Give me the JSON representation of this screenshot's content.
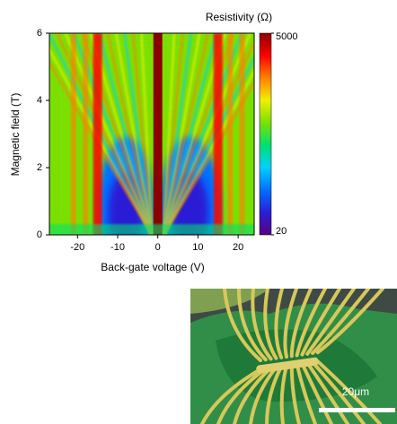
{
  "chart_data": {
    "type": "heatmap",
    "x_label": "Back-gate voltage (V)",
    "y_label": "Magnetic field (T)",
    "colorbar_label": "Resistivity (Ω)",
    "xlim": [
      -27,
      24
    ],
    "xticks": [
      -20,
      -10,
      0,
      10,
      20
    ],
    "ylim": [
      0,
      6
    ],
    "yticks": [
      0,
      2,
      4,
      6
    ],
    "clim": [
      20,
      5000
    ],
    "cticks": [
      20,
      5000
    ],
    "clog": true,
    "colormap": [
      "#5a007f",
      "#2a1fd6",
      "#0070ff",
      "#00d0ff",
      "#00e070",
      "#7be000",
      "#f0f000",
      "#ff8000",
      "#ff0000",
      "#8b0000"
    ]
  },
  "image": {
    "scale_bar_label": "20μm"
  }
}
